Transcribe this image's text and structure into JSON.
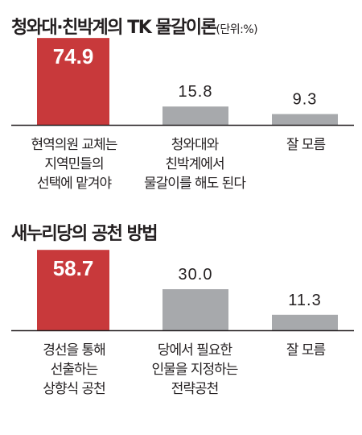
{
  "chart_data": [
    {
      "type": "bar",
      "title": "청와대·친박계의 TK 물갈이론",
      "unit_note": "(단위:%)",
      "categories": [
        "현역의원 교체는 지역민들의 선택에 맡겨야",
        "청와대와 친박계에서 물갈이를 해도 된다",
        "잘 모름"
      ],
      "category_lines": [
        [
          "현역의원 교체는",
          "지역민들의",
          "선택에 맡겨야"
        ],
        [
          "청와대와",
          "친박계에서",
          "물갈이를 해도 된다"
        ],
        [
          "잘 모름"
        ]
      ],
      "values": [
        74.9,
        15.8,
        9.3
      ],
      "value_labels": [
        "74.9",
        "15.8",
        "9.3"
      ],
      "colors": [
        "#c8393b",
        "#a7a9ac",
        "#a7a9ac"
      ],
      "ylim": [
        0,
        100
      ]
    },
    {
      "type": "bar",
      "title": "새누리당의 공천 방법",
      "categories": [
        "경선을 통해 선출하는 상향식 공천",
        "당에서 필요한 인물을 지정하는 전략공천",
        "잘 모름"
      ],
      "category_lines": [
        [
          "경선을 통해",
          "선출하는",
          "상향식 공천"
        ],
        [
          "당에서 필요한",
          "인물을 지정하는",
          "전략공천"
        ],
        [
          "잘 모름"
        ]
      ],
      "values": [
        58.7,
        30.0,
        11.3
      ],
      "value_labels": [
        "58.7",
        "30.0",
        "11.3"
      ],
      "colors": [
        "#c8393b",
        "#a7a9ac",
        "#a7a9ac"
      ],
      "ylim": [
        0,
        100
      ]
    }
  ]
}
